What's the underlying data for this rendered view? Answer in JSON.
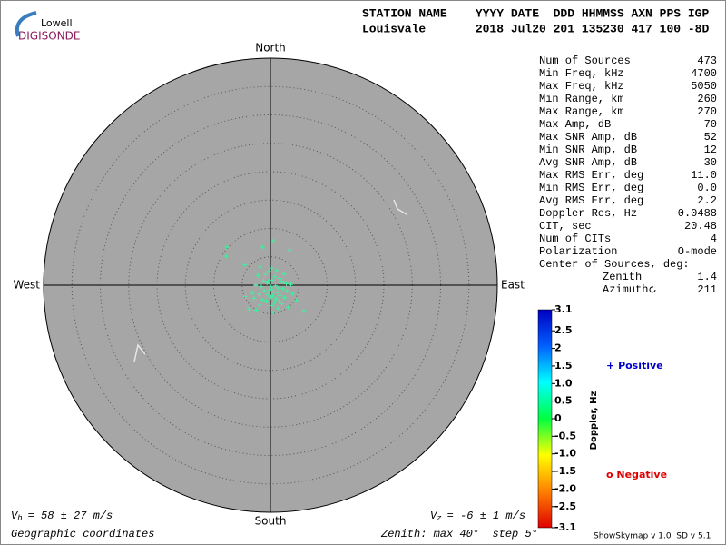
{
  "logo": {
    "top": "Lowell",
    "bottom": "DIGISONDE"
  },
  "header": {
    "line1": "STATION NAME    YYYY DATE  DDD HHMMSS AXN PPS IGP",
    "line2": "Louisvale       2018 Jul20 201 135230 417 100 -8D"
  },
  "stats": {
    "rows": [
      [
        "Num of Sources",
        "473"
      ],
      [
        "Min Freq, kHz",
        "4700"
      ],
      [
        "Max Freq, kHz",
        "5050"
      ],
      [
        "Min Range, km",
        "260"
      ],
      [
        "Max Range, km",
        "270"
      ],
      [
        "Max Amp, dB",
        "70"
      ],
      [
        "Max SNR Amp, dB",
        "52"
      ],
      [
        "Min SNR Amp, dB",
        "12"
      ],
      [
        "Avg SNR Amp, dB",
        "30"
      ],
      [
        "Max RMS Err, deg",
        "11.0"
      ],
      [
        "Min RMS Err, deg",
        "0.0"
      ],
      [
        "Avg RMS Err, deg",
        "2.2"
      ],
      [
        "Doppler Res, Hz",
        "0.0488"
      ],
      [
        "CIT, sec",
        "20.48"
      ],
      [
        "Num of CITs",
        "4"
      ],
      [
        "Polarization",
        "O-mode"
      ]
    ],
    "center_label": "Center of Sources, deg:",
    "center_rows": [
      [
        "Zenith",
        "1.4"
      ],
      [
        "Azimuth",
        "211"
      ]
    ]
  },
  "chart_data": {
    "type": "skymap",
    "directions": {
      "north": "North",
      "south": "South",
      "east": "East",
      "west": "West"
    },
    "zenith": {
      "label": "Zenith: max",
      "max": 40,
      "unit": "°",
      "step_label": "step",
      "step": 5
    },
    "coordinates": "Geographic coordinates",
    "vh": {
      "symbol": "V",
      "sub": "h",
      "text": "= 58 ± 27 m/s"
    },
    "vz": {
      "symbol": "V",
      "sub": "z",
      "text": "= -6 ± 1 m/s"
    },
    "series": [
      {
        "name": "Positive",
        "marker": "+",
        "color": "#0000cc",
        "point_color": "#40f0a0",
        "x": [
          -7.7,
          -1.4,
          0.5,
          3.4,
          -7.8,
          -4.5,
          -1.8,
          0.2,
          -0.3,
          1.1,
          2.4,
          -2.2,
          -0.9,
          0.8,
          1.6,
          -1.2,
          0.3,
          -0.6,
          1.9,
          2.8,
          3.6,
          -2.6,
          -1.6,
          0.1,
          0.9,
          1.4,
          2.2,
          -0.2,
          -1.1,
          0.6,
          1.2,
          2.9,
          -3.2,
          -2.0,
          -0.5,
          0.4,
          1.7,
          3.9,
          -4.4,
          -2.9,
          0.0,
          1.0,
          2.5,
          -1.4,
          -0.7,
          0.7,
          1.5,
          4.6,
          -3.8,
          -1.9,
          0.3,
          2.0,
          5.9,
          -2.5,
          0.5,
          1.3,
          3.1,
          -0.4,
          2.3,
          0.2
        ],
        "y": [
          6.7,
          6.7,
          7.8,
          6.2,
          5.1,
          3.6,
          3.2,
          3.0,
          2.4,
          2.6,
          2.0,
          1.7,
          1.9,
          1.5,
          1.2,
          0.8,
          0.9,
          0.4,
          0.7,
          0.3,
          0.1,
          0.0,
          -0.2,
          -0.3,
          -0.1,
          -0.5,
          -0.6,
          -0.9,
          -1.0,
          -1.2,
          -1.3,
          -1.0,
          -1.4,
          -1.6,
          -1.7,
          -1.9,
          -1.8,
          -1.5,
          -2.0,
          -2.3,
          -2.1,
          -2.4,
          -2.2,
          -2.6,
          -2.8,
          -3.0,
          -2.9,
          -2.7,
          -4.2,
          -3.5,
          -3.6,
          -3.3,
          -4.5,
          -4.4,
          -4.8,
          -4.1,
          -3.9,
          0.6,
          0.5,
          -0.7
        ]
      },
      {
        "name": "Negative",
        "marker": "o",
        "color": "#dd0000",
        "point_color": "#dd0000",
        "x": [],
        "y": []
      }
    ],
    "colorbar": {
      "label": "Doppler, Hz",
      "lim": [
        -3.1,
        3.1
      ],
      "colors": [
        "#e00000",
        "#ff8000",
        "#ffff00",
        "#00ff40",
        "#00ffff",
        "#0060ff",
        "#0000c0"
      ],
      "ticks": [
        3.1,
        2.5,
        2,
        {
          "value": 1.5,
          "label": "1.5"
        },
        {
          "value": 1,
          "label": "1.0"
        },
        0.5,
        0,
        -0.5,
        {
          "value": -1,
          "label": "-1.0"
        },
        -1.5,
        {
          "value": -2,
          "label": "-2.0"
        },
        -2.5,
        -3.1
      ]
    },
    "version": "ShowSkymap v 1.0  SD v 5.1"
  }
}
